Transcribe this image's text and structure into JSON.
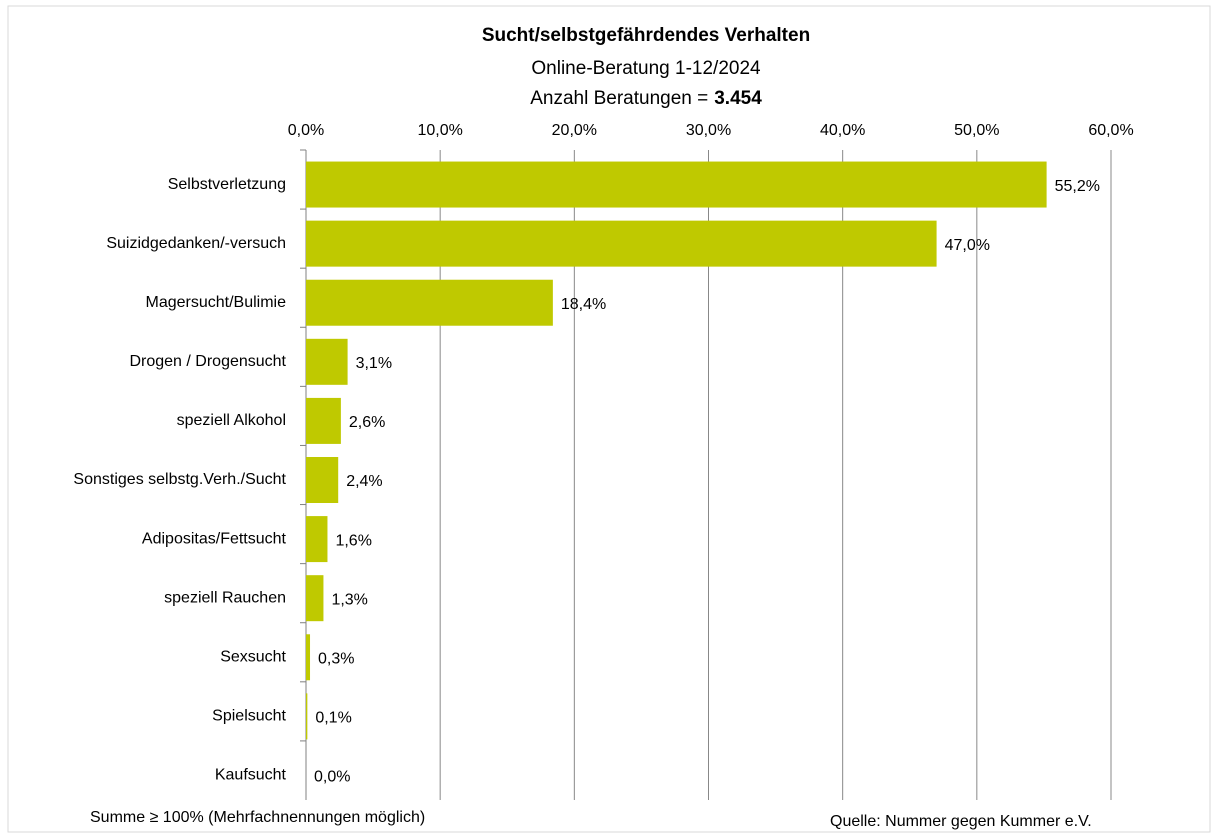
{
  "chart_data": {
    "type": "barh",
    "title": "Sucht/selbstgefährdendes Verhalten",
    "subtitle": "Online-Beratung 1-12/2024",
    "count_label": "Anzahl Beratungen =",
    "count": "3.454",
    "categories": [
      "Selbstverletzung",
      "Suizidgedanken/-versuch",
      "Magersucht/Bulimie",
      "Drogen / Drogensucht",
      "speziell Alkohol",
      "Sonstiges selbstg.Verh./Sucht",
      "Adipositas/Fettsucht",
      "speziell Rauchen",
      "Sexsucht",
      "Spielsucht",
      "Kaufsucht"
    ],
    "values": [
      55.2,
      47.0,
      18.4,
      3.1,
      2.6,
      2.4,
      1.6,
      1.3,
      0.3,
      0.1,
      0.0
    ],
    "value_labels": [
      "55,2%",
      "47,0%",
      "18,4%",
      "3,1%",
      "2,6%",
      "2,4%",
      "1,6%",
      "1,3%",
      "0,3%",
      "0,1%",
      "0,0%"
    ],
    "color": "#bfc900",
    "xlim": [
      0,
      60
    ],
    "xticks": [
      {
        "value": 0,
        "label": "0,0%"
      },
      {
        "value": 10,
        "label": "10,0%"
      },
      {
        "value": 20,
        "label": "20,0%"
      },
      {
        "value": 30,
        "label": "30,0%"
      },
      {
        "value": 40,
        "label": "40,0%"
      },
      {
        "value": 50,
        "label": "50,0%"
      },
      {
        "value": 60,
        "label": "60,0%"
      }
    ],
    "grid": true,
    "footnote": "Summe ≥ 100% (Mehrfachnennungen möglich)",
    "source": "Quelle: Nummer gegen Kummer e.V."
  }
}
